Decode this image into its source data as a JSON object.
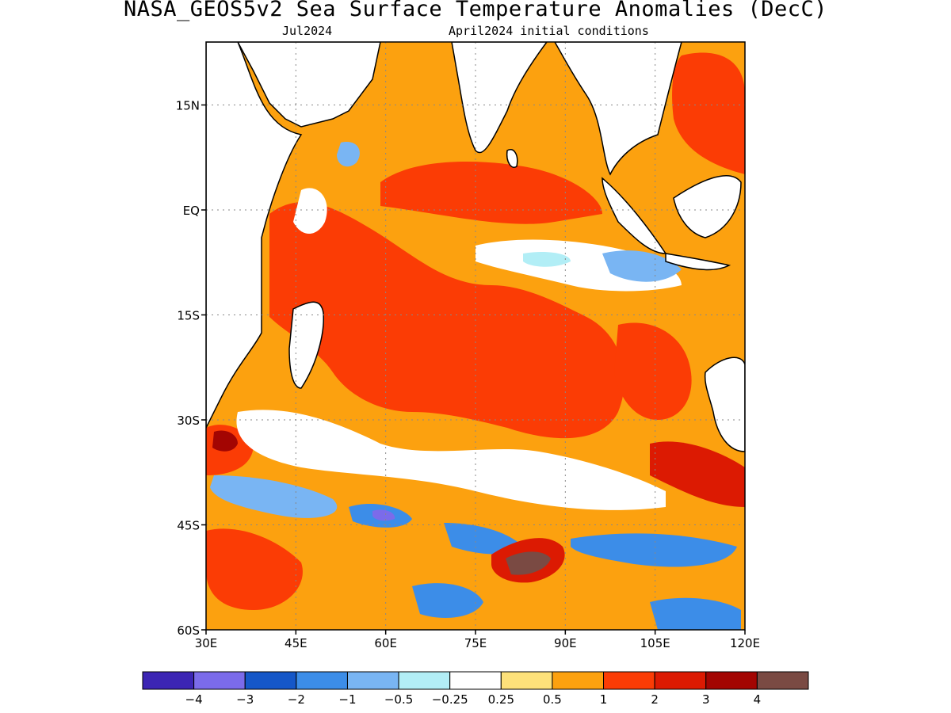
{
  "title": "NASA_GEOS5v2 Sea Surface Temperature Anomalies (DecC)",
  "valid_month": "Jul2024",
  "initial_conditions": "April2024 initial conditions",
  "map": {
    "lon_range": [
      30,
      120
    ],
    "lat_range": [
      -60,
      24
    ],
    "lat_ticks": [
      {
        "value": 15,
        "label": "15N"
      },
      {
        "value": 0,
        "label": "EQ"
      },
      {
        "value": -15,
        "label": "15S"
      },
      {
        "value": -30,
        "label": "30S"
      },
      {
        "value": -45,
        "label": "45S"
      },
      {
        "value": -60,
        "label": "60S"
      }
    ],
    "lon_ticks": [
      {
        "value": 30,
        "label": "30E"
      },
      {
        "value": 45,
        "label": "45E"
      },
      {
        "value": 60,
        "label": "60E"
      },
      {
        "value": 75,
        "label": "75E"
      },
      {
        "value": 90,
        "label": "90E"
      },
      {
        "value": 105,
        "label": "105E"
      },
      {
        "value": 120,
        "label": "120E"
      }
    ],
    "grid": "dotted"
  },
  "colorbar": {
    "colors": [
      "#3c25b4",
      "#7b6bea",
      "#1557c8",
      "#3c8de8",
      "#79b5f3",
      "#b2eef6",
      "#ffffff",
      "#fde17a",
      "#fca10f",
      "#fb3c05",
      "#dc1a02",
      "#a30502",
      "#7a4a43"
    ],
    "labels": [
      "−4",
      "−3",
      "−2",
      "−1",
      "−0.5",
      "−0.25",
      "0.25",
      "0.5",
      "1",
      "2",
      "3",
      "4"
    ]
  }
}
